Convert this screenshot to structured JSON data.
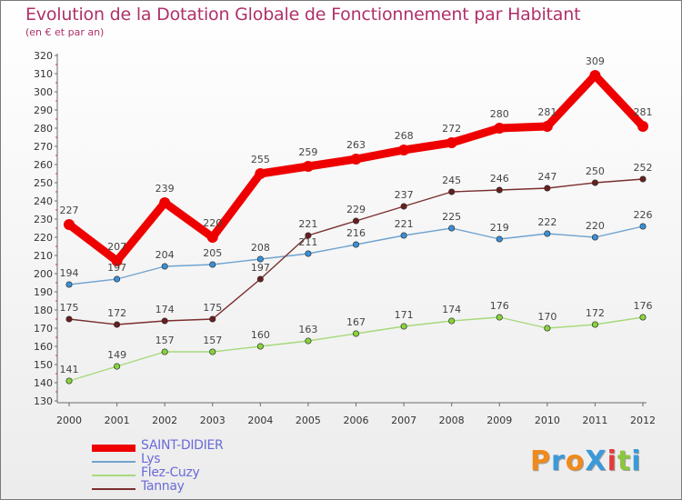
{
  "header": {
    "title": "Evolution de la Dotation Globale de Fonctionnement par Habitant",
    "subtitle": "(en € et par an)"
  },
  "logo": {
    "text": "ProXiti",
    "colors": [
      "#f08a1c",
      "#3a9ad9",
      "#f08a1c",
      "#3a9ad9",
      "#e23a3a",
      "#8cc63f",
      "#3a9ad9"
    ]
  },
  "chart_data": {
    "type": "line",
    "title": "Evolution de la Dotation Globale de Fonctionnement par Habitant",
    "subtitle": "(en € et par an)",
    "xlabel": "",
    "ylabel": "",
    "x": [
      "2000",
      "2001",
      "2002",
      "2003",
      "2004",
      "2005",
      "2006",
      "2007",
      "2008",
      "2009",
      "2010",
      "2011",
      "2012"
    ],
    "ylim": [
      130,
      320
    ],
    "yticks": [
      130,
      140,
      150,
      160,
      170,
      180,
      190,
      200,
      210,
      220,
      230,
      240,
      250,
      260,
      270,
      280,
      290,
      300,
      310,
      320
    ],
    "grid": false,
    "legend_position": "bottom-left",
    "series": [
      {
        "name": "SAINT-DIDIER",
        "values": [
          227,
          207,
          239,
          220,
          255,
          259,
          263,
          268,
          272,
          280,
          281,
          309,
          281
        ],
        "color": "#ee0000",
        "marker_color": "#ee0000",
        "width": "thick"
      },
      {
        "name": "Lys",
        "values": [
          194,
          197,
          204,
          205,
          208,
          211,
          216,
          221,
          225,
          219,
          222,
          220,
          226
        ],
        "color": "#6fa3cf",
        "marker_color": "#3a8fd6",
        "width": "thin"
      },
      {
        "name": "Flez-Cuzy",
        "values": [
          141,
          149,
          157,
          157,
          160,
          163,
          167,
          171,
          174,
          176,
          170,
          172,
          176
        ],
        "color": "#a6d97a",
        "marker_color": "#86d43a",
        "width": "thin"
      },
      {
        "name": "Tannay",
        "values": [
          175,
          172,
          174,
          175,
          197,
          221,
          229,
          237,
          245,
          246,
          247,
          250,
          252
        ],
        "color": "#7a2f2f",
        "marker_color": "#6a1e1e",
        "width": "thin"
      }
    ]
  }
}
